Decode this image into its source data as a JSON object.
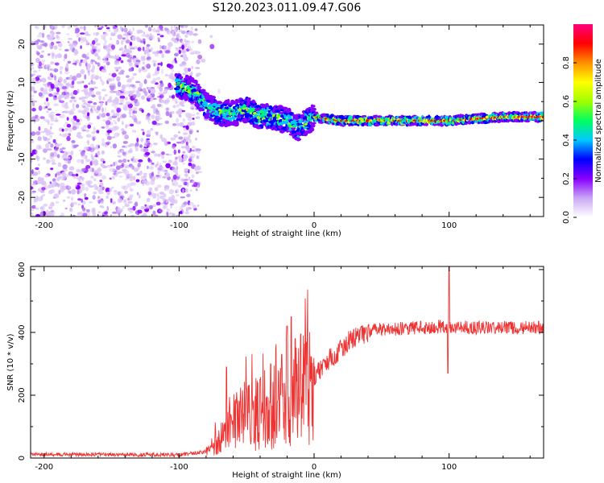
{
  "title": "S120.2023.011.09.47.G06",
  "chart_data": [
    {
      "type": "heatmap",
      "xlabel": "Height of straight line (km)",
      "ylabel": "Frequency (Hz)",
      "xlim": [
        -210,
        170
      ],
      "ylim": [
        -25,
        25
      ],
      "xticks": [
        -200,
        -100,
        0,
        100
      ],
      "yticks": [
        -20,
        -10,
        0,
        10,
        20
      ],
      "ridge": [
        [
          -100,
          9
        ],
        [
          -90,
          8
        ],
        [
          -80,
          4
        ],
        [
          -70,
          2
        ],
        [
          -60,
          2
        ],
        [
          -50,
          3
        ],
        [
          -40,
          1
        ],
        [
          -30,
          1
        ],
        [
          -20,
          0
        ],
        [
          -12,
          -2
        ],
        [
          -5,
          0
        ],
        [
          0,
          1
        ],
        [
          20,
          0
        ],
        [
          60,
          0
        ],
        [
          100,
          0
        ],
        [
          140,
          1
        ],
        [
          170,
          1
        ]
      ],
      "noise_region_xlim": [
        -210,
        -85
      ],
      "colorbar": {
        "label": "Normalized spectral amplitude",
        "range": [
          0,
          1
        ],
        "ticks": [
          "0.0",
          "0.2",
          "0.4",
          "0.6",
          "0.8"
        ],
        "colors": [
          "#ffffff",
          "#c9a8f5",
          "#8800ff",
          "#0000ff",
          "#00c8ff",
          "#00ff60",
          "#a0ff00",
          "#ffff00",
          "#ff9000",
          "#ff0000",
          "#ff0080"
        ]
      }
    },
    {
      "type": "line",
      "xlabel": "Height of straight line (km)",
      "ylabel": "SNR (10 * v/v)",
      "xlim": [
        -210,
        170
      ],
      "ylim": [
        0,
        610
      ],
      "xticks": [
        -200,
        -100,
        0,
        100
      ],
      "yticks": [
        0,
        200,
        400,
        600
      ],
      "color": "#ee3333",
      "series_knots": [
        [
          -210,
          12
        ],
        [
          -100,
          10
        ],
        [
          -80,
          20
        ],
        [
          -70,
          60
        ],
        [
          -60,
          110
        ],
        [
          -50,
          140
        ],
        [
          -40,
          150
        ],
        [
          -30,
          160
        ],
        [
          -20,
          175
        ],
        [
          -10,
          200
        ],
        [
          0,
          260
        ],
        [
          10,
          310
        ],
        [
          20,
          350
        ],
        [
          30,
          385
        ],
        [
          40,
          405
        ],
        [
          50,
          410
        ],
        [
          80,
          415
        ],
        [
          100,
          420
        ],
        [
          120,
          415
        ],
        [
          170,
          415
        ]
      ],
      "spikes": [
        [
          -65,
          290
        ],
        [
          -50,
          220
        ],
        [
          -40,
          250
        ],
        [
          -32,
          300
        ],
        [
          -24,
          330
        ],
        [
          -20,
          420
        ],
        [
          -17,
          450
        ],
        [
          -14,
          380
        ],
        [
          -10,
          395
        ],
        [
          100,
          610
        ],
        [
          99,
          270
        ]
      ]
    }
  ]
}
